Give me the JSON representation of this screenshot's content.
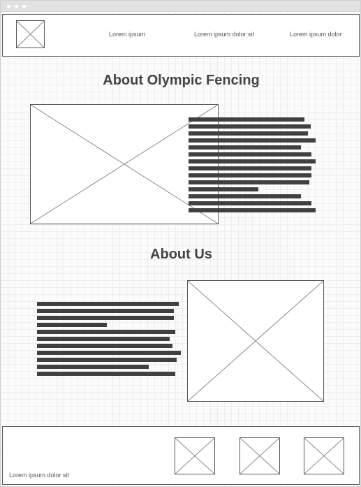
{
  "nav": {
    "links": [
      "Lorem ipsum",
      "Lorem ipsum dolor sit",
      "Lorem ipsum dolor"
    ]
  },
  "sections": [
    {
      "title": "About Olympic Fencing"
    },
    {
      "title": "About Us"
    }
  ],
  "footer": {
    "text": "Lorem ipsum dolor sit"
  },
  "colors": {
    "text": "#444444",
    "border": "#555555",
    "text_line": "#404040",
    "grid": "#eeeeee"
  },
  "icons": {
    "placeholder": "image-placeholder-icon"
  }
}
